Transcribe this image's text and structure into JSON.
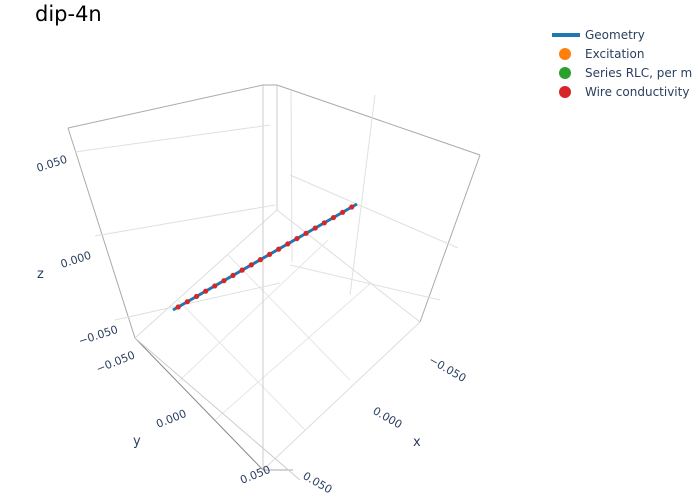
{
  "chart_data": {
    "type": "scatter3d",
    "title": "dip-4n",
    "axes": {
      "x": {
        "label": "x",
        "ticks": [
          "−0.050",
          "0.000",
          "0.050"
        ]
      },
      "y": {
        "label": "y",
        "ticks": [
          "−0.050",
          "0.000",
          "0.050"
        ]
      },
      "z": {
        "label": "z",
        "ticks": [
          "−0.050",
          "0.000",
          "0.050"
        ]
      }
    },
    "legend": {
      "placement": "top-right",
      "items": [
        {
          "name": "Geometry",
          "kind": "line",
          "color": "#1f77b4"
        },
        {
          "name": "Excitation",
          "kind": "marker",
          "color": "#ff7f0e"
        },
        {
          "name": "Series RLC, per m",
          "kind": "marker",
          "color": "#2ca02c"
        },
        {
          "name": "Wire conductivity",
          "kind": "marker",
          "color": "#d62728"
        }
      ]
    },
    "series": [
      {
        "name": "Geometry",
        "type": "line",
        "color": "#1f77b4",
        "points": [
          [
            0.0,
            -0.07,
            0.0
          ],
          [
            0.0,
            0.07,
            0.0
          ]
        ]
      },
      {
        "name": "Wire conductivity",
        "type": "markers",
        "color": "#d62728",
        "count": 20,
        "y_range": [
          -0.066,
          0.066
        ],
        "x": 0.0,
        "z": 0.0
      }
    ]
  }
}
